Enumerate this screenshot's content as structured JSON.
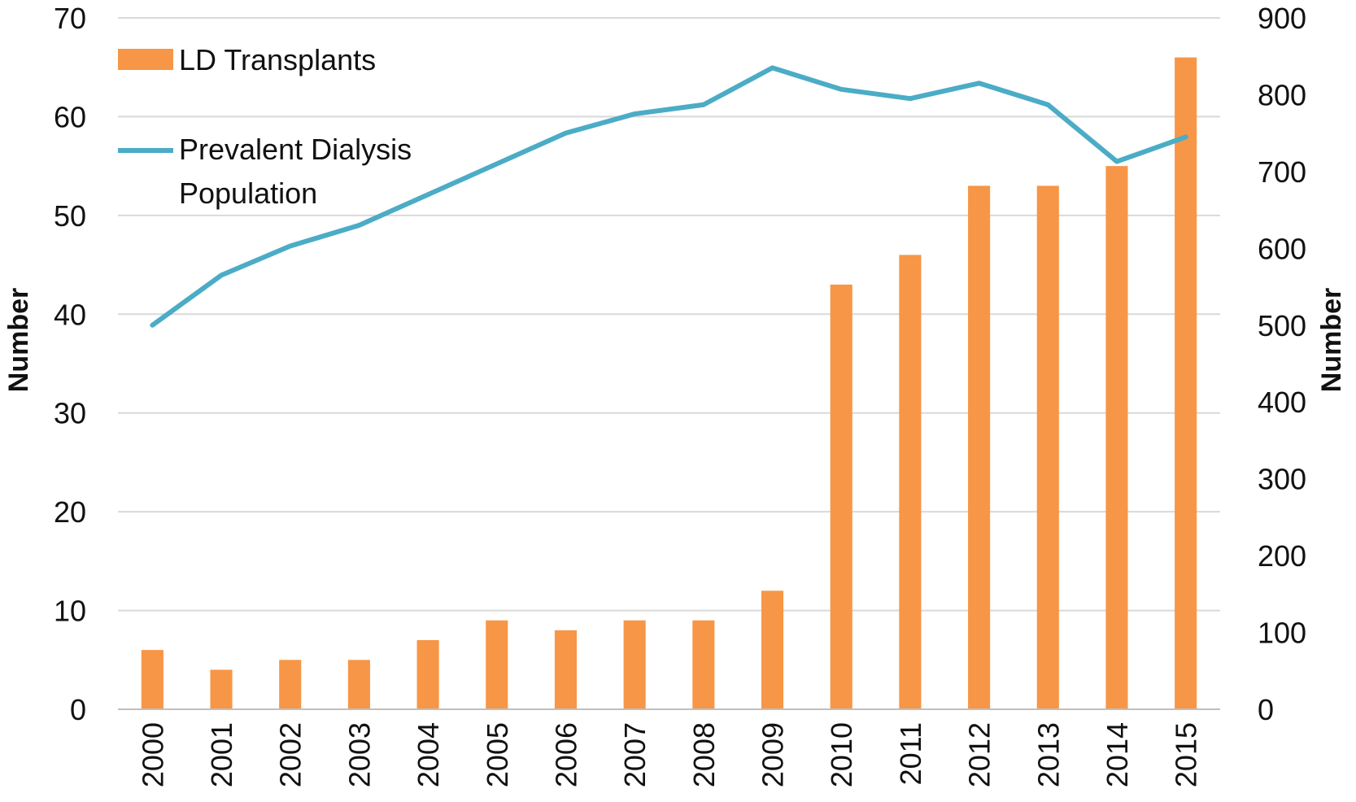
{
  "chart_data": {
    "type": "bar",
    "categories": [
      "2000",
      "2001",
      "2002",
      "2003",
      "2004",
      "2005",
      "2006",
      "2007",
      "2008",
      "2009",
      "2010",
      "2011",
      "2012",
      "2013",
      "2014",
      "2015"
    ],
    "series": [
      {
        "name": "LD Transplants",
        "type": "bar",
        "axis": "left",
        "color": "#F79646",
        "values": [
          6,
          4,
          5,
          5,
          7,
          9,
          8,
          9,
          9,
          12,
          43,
          46,
          53,
          53,
          55,
          66
        ]
      },
      {
        "name": "Prevalent Dialysis Population",
        "type": "line",
        "axis": "right",
        "color": "#4BACC6",
        "values": [
          500,
          565,
          603,
          630,
          670,
          710,
          750,
          775,
          787,
          835,
          807,
          795,
          815,
          787,
          713,
          745
        ]
      }
    ],
    "left_axis": {
      "label": "Number",
      "min": 0,
      "max": 70,
      "ticks": [
        "0",
        "10",
        "20",
        "30",
        "40",
        "50",
        "60",
        "70"
      ]
    },
    "right_axis": {
      "label": "Number",
      "min": 0,
      "max": 900,
      "ticks": [
        "0",
        "100",
        "200",
        "300",
        "400",
        "500",
        "600",
        "700",
        "800",
        "900"
      ]
    },
    "legend": {
      "placement": "top-left",
      "items": [
        {
          "label": "LD Transplants",
          "symbol": "bar"
        },
        {
          "label_lines": [
            "Prevalent Dialysis",
            "Population"
          ],
          "symbol": "line"
        }
      ]
    },
    "grid": true,
    "grid_color": "#d9d9d9"
  }
}
